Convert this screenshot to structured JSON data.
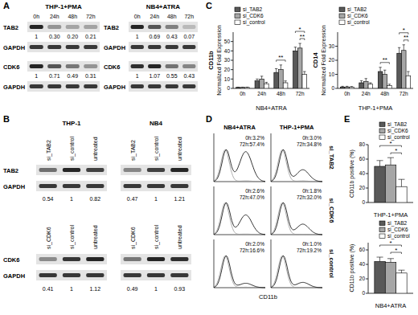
{
  "panel_labels": [
    "A",
    "B",
    "C",
    "D",
    "E"
  ],
  "blots_A": {
    "groups": [
      {
        "title": "THP-1+PMA",
        "lanes": [
          "0h",
          "24h",
          "48h",
          "72h"
        ],
        "rows": [
          {
            "protein": "TAB2",
            "quant": [
              "1",
              "0.30",
              "0.20",
              "0.21"
            ]
          },
          {
            "protein": "GAPDH"
          },
          {
            "protein": "CDK6",
            "quant": [
              "1",
              "0.71",
              "0.49",
              "0.31"
            ]
          },
          {
            "protein": "GAPDH"
          }
        ]
      },
      {
        "title": "NB4+ATRA",
        "lanes": [
          "0h",
          "24h",
          "48h",
          "72h"
        ],
        "rows": [
          {
            "protein": "TAB2",
            "quant": [
              "1",
              "0.69",
              "0.43",
              "0.07"
            ]
          },
          {
            "protein": "GAPDH"
          },
          {
            "protein": "CDK6",
            "quant": [
              "1",
              "1.07",
              "0.55",
              "0.43"
            ]
          },
          {
            "protein": "GAPDH"
          }
        ]
      }
    ]
  },
  "blots_B": {
    "titles": [
      "THP-1",
      "NB4"
    ],
    "blocks": [
      {
        "lanes": [
          "si_TAB2",
          "si_control",
          "untreated"
        ],
        "protein": "TAB2",
        "loading": "GAPDH",
        "quant": [
          [
            "0.54",
            "1",
            "0.82"
          ],
          [
            "0.47",
            "1",
            "1.21"
          ]
        ]
      },
      {
        "lanes": [
          "si_CDK6",
          "si_control",
          "untreated"
        ],
        "protein": "CDK6",
        "loading": "GAPDH",
        "quant": [
          [
            "0.41",
            "1",
            "1.12"
          ],
          [
            "0.49",
            "1",
            "0.93"
          ]
        ]
      }
    ]
  },
  "flow_D": {
    "columns": [
      "NB4+ATRA",
      "THP-1+PMA"
    ],
    "rows": [
      "si_TAB2",
      "si_CDK6",
      "si_control"
    ],
    "stats": [
      [
        [
          "0h:3.2%",
          "72h:57.4%"
        ],
        [
          "0h:3.0%",
          "72h:34.8%"
        ]
      ],
      [
        [
          "0h:2.6%",
          "72h:47.0%"
        ],
        [
          "0h:1.8%",
          "72h:32.0%"
        ]
      ],
      [
        [
          "0h:2.0%",
          "72h:16.6%"
        ],
        [
          "0h:1.0%",
          "72h:19.2%"
        ]
      ]
    ],
    "x_label": "CD11b"
  },
  "chart_data": [
    {
      "type": "bar",
      "title": "CD11b",
      "y_label": "Normalized Fold Expression",
      "x_label": "NB4+ATRA",
      "categories": [
        "0h",
        "24h",
        "48h",
        "72h"
      ],
      "series": [
        {
          "name": "si_TAB2",
          "color": "#595959",
          "values": [
            1,
            8,
            17,
            40
          ],
          "errors": [
            0.3,
            2,
            4,
            4
          ]
        },
        {
          "name": "si_CDK6",
          "color": "#a6a6a6",
          "values": [
            1,
            10,
            20,
            43
          ],
          "errors": [
            0.3,
            3,
            5,
            5
          ]
        },
        {
          "name": "si_control",
          "color": "#ffffff",
          "values": [
            1,
            5,
            6,
            15
          ],
          "errors": [
            0.3,
            1.5,
            2,
            3
          ]
        }
      ],
      "ylim": [
        0,
        60
      ],
      "yticks": [
        0,
        10,
        20,
        30,
        40,
        50
      ],
      "legend": "top-left",
      "annotations": [
        {
          "text": "**",
          "category": 2,
          "between": [
            0,
            2
          ]
        },
        {
          "text": "**",
          "category": 3,
          "between": [
            1,
            2
          ]
        },
        {
          "text": "*",
          "category": 3,
          "between": [
            0,
            2
          ]
        }
      ]
    },
    {
      "type": "bar",
      "title": "CD14",
      "y_label": "Normalized Fold Expression",
      "x_label": "THP-1+PMA",
      "categories": [
        "0h",
        "24h",
        "48h",
        "72h"
      ],
      "series": [
        {
          "name": "si_TAB2",
          "color": "#595959",
          "values": [
            1,
            4,
            12,
            25
          ],
          "errors": [
            0.5,
            1.5,
            3,
            4
          ]
        },
        {
          "name": "si_CDK6",
          "color": "#a6a6a6",
          "values": [
            1,
            5,
            10,
            27
          ],
          "errors": [
            0.5,
            2,
            3,
            4
          ]
        },
        {
          "name": "si_control",
          "color": "#ffffff",
          "values": [
            1,
            3,
            2,
            9
          ],
          "errors": [
            0.3,
            1,
            1,
            3
          ]
        }
      ],
      "ylim": [
        0,
        40
      ],
      "yticks": [
        0,
        10,
        20,
        30
      ],
      "legend": "top-left",
      "annotations": [
        {
          "text": "**",
          "category": 2,
          "between": [
            0,
            2
          ]
        },
        {
          "text": "**",
          "category": 3,
          "between": [
            1,
            2
          ]
        },
        {
          "text": "*",
          "category": 3,
          "between": [
            0,
            2
          ]
        }
      ]
    },
    {
      "type": "bar",
      "y_label": "CD11b positive (%)",
      "x_label": "THP-1+PMA",
      "categories": [
        null
      ],
      "series": [
        {
          "name": "si_TAB2",
          "color": "#595959",
          "values": [
            50
          ],
          "errors": [
            8
          ]
        },
        {
          "name": "si_CDK6",
          "color": "#a6a6a6",
          "values": [
            52
          ],
          "errors": [
            10
          ]
        },
        {
          "name": "si_control",
          "color": "#ffffff",
          "values": [
            22
          ],
          "errors": [
            10
          ]
        }
      ],
      "ylim": [
        0,
        80
      ],
      "yticks": [
        0,
        20,
        40,
        60,
        80
      ],
      "legend": "top-right",
      "annotations": [
        {
          "text": "*",
          "category": 0,
          "between": [
            1,
            2
          ]
        },
        {
          "text": "*",
          "category": 0,
          "between": [
            0,
            2
          ]
        }
      ]
    },
    {
      "type": "bar",
      "y_label": "CD11b positive (%)",
      "x_label": "NB4+ATRA",
      "categories": [
        null
      ],
      "series": [
        {
          "name": "si_TAB2",
          "color": "#595959",
          "values": [
            44
          ],
          "errors": [
            6
          ]
        },
        {
          "name": "si_CDK6",
          "color": "#a6a6a6",
          "values": [
            43
          ],
          "errors": [
            5
          ]
        },
        {
          "name": "si_control",
          "color": "#ffffff",
          "values": [
            28
          ],
          "errors": [
            4
          ]
        }
      ],
      "ylim": [
        0,
        70
      ],
      "yticks": [
        0,
        20,
        40,
        60
      ],
      "legend": "top-right",
      "annotations": [
        {
          "text": "*",
          "category": 0,
          "between": [
            1,
            2
          ]
        },
        {
          "text": "*",
          "category": 0,
          "between": [
            0,
            2
          ]
        }
      ]
    }
  ]
}
